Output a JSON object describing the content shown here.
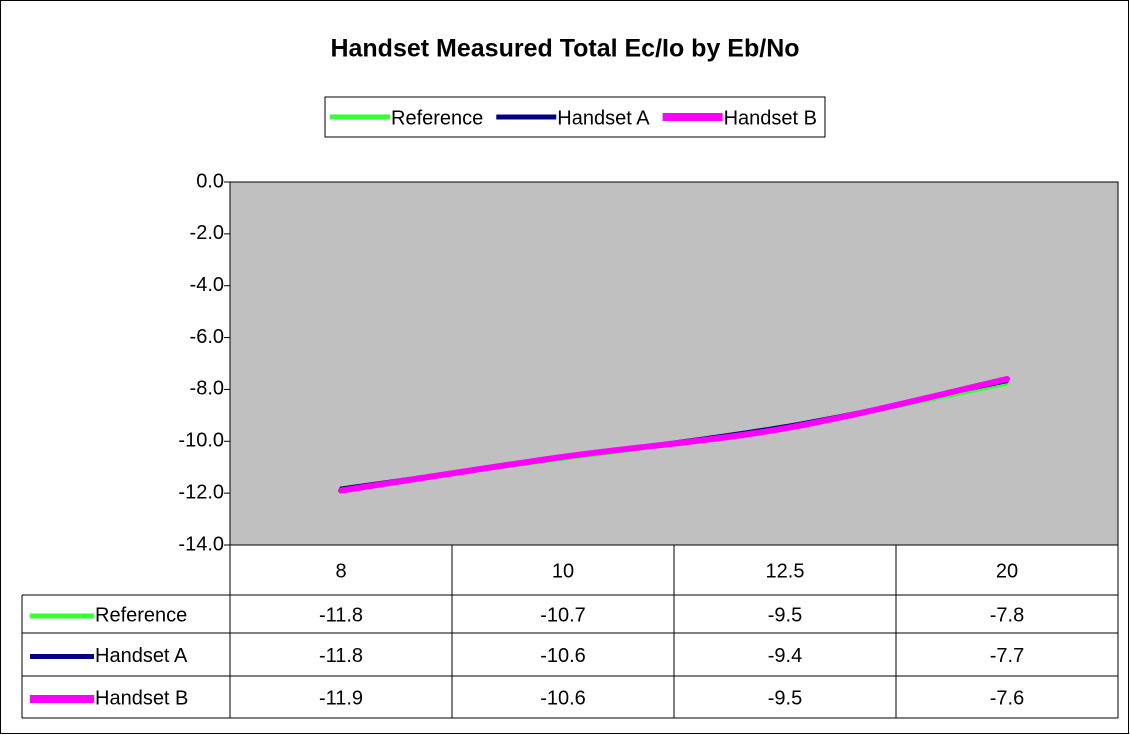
{
  "chart_data": {
    "type": "line",
    "title": "Handset Measured Total Ec/Io by Eb/No",
    "categories": [
      "8",
      "10",
      "12.5",
      "20"
    ],
    "series": [
      {
        "name": "Reference",
        "color": "#33ff33",
        "values": [
          -11.8,
          -10.7,
          -9.5,
          -7.8
        ]
      },
      {
        "name": "Handset A",
        "color": "#000080",
        "values": [
          -11.8,
          -10.6,
          -9.4,
          -7.7
        ]
      },
      {
        "name": "Handset B",
        "color": "#ff00ff",
        "values": [
          -11.9,
          -10.6,
          -9.5,
          -7.6
        ]
      }
    ],
    "ylim": [
      -14,
      0
    ],
    "yticks": [
      {
        "value": 0,
        "label": "0.0"
      },
      {
        "value": -2,
        "label": "-2.0"
      },
      {
        "value": -4,
        "label": "-4.0"
      },
      {
        "value": -6,
        "label": "-6.0"
      },
      {
        "value": -8,
        "label": "-8.0"
      },
      {
        "value": -10,
        "label": "-10.0"
      },
      {
        "value": -12,
        "label": "-12.0"
      },
      {
        "value": -14,
        "label": "-14.0"
      }
    ],
    "legend": "top",
    "plot_background": "#c0c0c0"
  }
}
